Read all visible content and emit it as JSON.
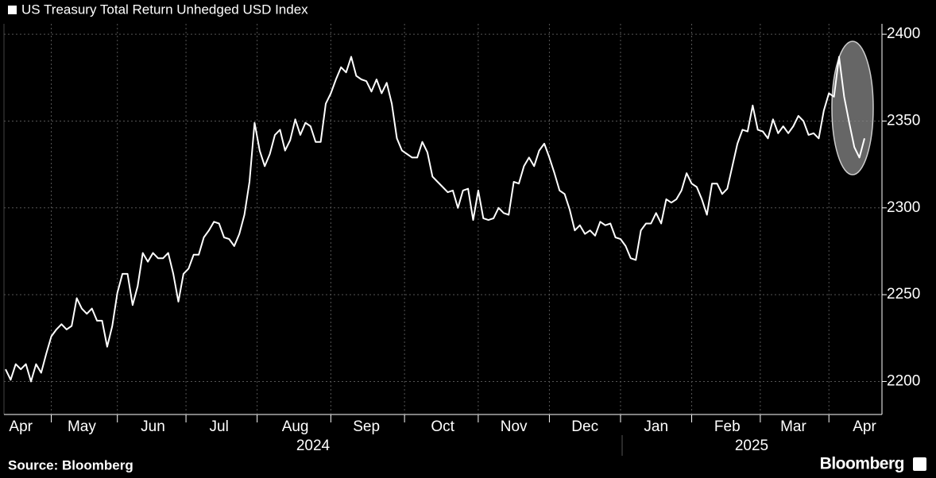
{
  "chart_data": {
    "type": "line",
    "title": "US Treasury Total Return Unhedged USD Index",
    "source": "Source: Bloomberg",
    "brand": "Bloomberg",
    "year_labels": [
      "2024",
      "2025"
    ],
    "color": "#ffffff",
    "grid": true,
    "ylim": [
      2181,
      2406
    ],
    "yticks": [
      2200,
      2250,
      2300,
      2350,
      2400
    ],
    "categories": [
      null,
      null,
      null,
      "Apr",
      null,
      null,
      null,
      null,
      null,
      null,
      null,
      null,
      null,
      null,
      null,
      "May",
      null,
      null,
      null,
      null,
      null,
      null,
      null,
      null,
      null,
      null,
      null,
      null,
      null,
      "Jun",
      null,
      null,
      null,
      null,
      null,
      null,
      null,
      null,
      null,
      null,
      null,
      null,
      "Jul",
      null,
      null,
      null,
      null,
      null,
      null,
      null,
      null,
      null,
      null,
      null,
      null,
      null,
      null,
      "Aug",
      null,
      null,
      null,
      null,
      null,
      null,
      null,
      null,
      null,
      null,
      null,
      null,
      null,
      "Sep",
      null,
      null,
      null,
      null,
      null,
      null,
      null,
      null,
      null,
      null,
      null,
      null,
      null,
      null,
      "Oct",
      null,
      null,
      null,
      null,
      null,
      null,
      null,
      null,
      null,
      null,
      null,
      null,
      null,
      "Nov",
      null,
      null,
      null,
      null,
      null,
      null,
      null,
      null,
      null,
      null,
      null,
      null,
      null,
      "Dec",
      null,
      null,
      null,
      null,
      null,
      null,
      null,
      null,
      null,
      null,
      null,
      null,
      null,
      "Jan",
      null,
      null,
      null,
      null,
      null,
      null,
      null,
      null,
      null,
      null,
      null,
      null,
      null,
      "Feb",
      null,
      null,
      null,
      null,
      null,
      null,
      null,
      null,
      null,
      null,
      null,
      null,
      "Mar",
      null,
      null,
      null,
      null,
      null,
      null,
      null,
      null,
      null,
      null,
      null,
      null,
      null,
      "Apr"
    ],
    "values": [
      2207,
      2201,
      2210,
      2207,
      2210,
      2200,
      2210,
      2205,
      2216,
      2226,
      2230,
      2233,
      2230,
      2232,
      2248,
      2242,
      2239,
      2242,
      2235,
      2235,
      2220,
      2232,
      2251,
      2262,
      2262,
      2244,
      2255,
      2274,
      2269,
      2274,
      2271,
      2271,
      2274,
      2262,
      2246,
      2262,
      2265,
      2273,
      2273,
      2283,
      2287,
      2292,
      2291,
      2283,
      2282,
      2278,
      2285,
      2296,
      2315,
      2349,
      2333,
      2324,
      2331,
      2342,
      2345,
      2333,
      2339,
      2351,
      2342,
      2349,
      2347,
      2338,
      2338,
      2360,
      2366,
      2374,
      2381,
      2378,
      2387,
      2376,
      2374,
      2373,
      2367,
      2374,
      2366,
      2372,
      2360,
      2340,
      2333,
      2331,
      2329,
      2329,
      2338,
      2332,
      2318,
      2315,
      2312,
      2309,
      2310,
      2300,
      2310,
      2311,
      2293,
      2310,
      2294,
      2293,
      2294,
      2300,
      2297,
      2296,
      2315,
      2314,
      2324,
      2329,
      2324,
      2333,
      2337,
      2329,
      2320,
      2310,
      2308,
      2299,
      2287,
      2290,
      2285,
      2287,
      2284,
      2292,
      2290,
      2291,
      2283,
      2282,
      2278,
      2271,
      2270,
      2287,
      2291,
      2291,
      2297,
      2291,
      2305,
      2303,
      2305,
      2310,
      2320,
      2314,
      2312,
      2305,
      2296,
      2314,
      2314,
      2308,
      2311,
      2324,
      2337,
      2345,
      2344,
      2359,
      2345,
      2344,
      2340,
      2351,
      2343,
      2347,
      2343,
      2347,
      2353,
      2350,
      2342,
      2343,
      2340,
      2356,
      2366,
      2364,
      2387,
      2364,
      2349,
      2335,
      2329,
      2340
    ]
  }
}
